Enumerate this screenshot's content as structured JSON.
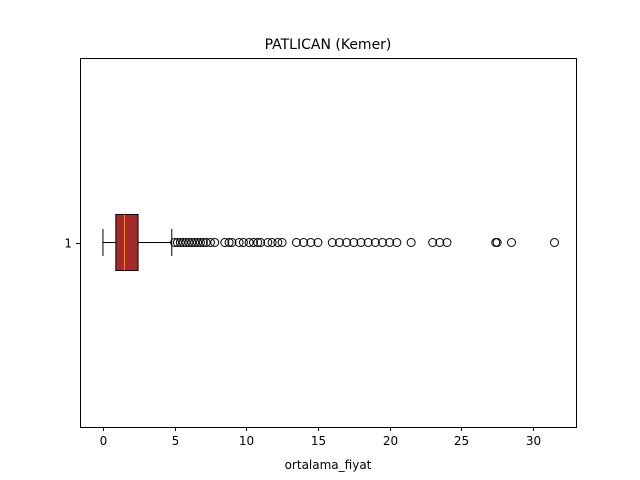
{
  "chart_data": {
    "type": "boxplot",
    "orientation": "horizontal",
    "title": "PATLICAN (Kemer)",
    "xlabel": "ortalama_fiyat",
    "ylabel": "",
    "xlim": [
      -1.6,
      33.0
    ],
    "x_ticks": [
      0,
      5,
      10,
      15,
      20,
      25,
      30
    ],
    "x_tick_labels": [
      "0",
      "5",
      "10",
      "15",
      "20",
      "25",
      "30"
    ],
    "category_labels": [
      "1"
    ],
    "grid": false,
    "boxes": [
      {
        "category": "1",
        "whisker_low": 0.0,
        "q1": 0.9,
        "median": 1.5,
        "q3": 2.45,
        "whisker_high": 4.8,
        "outliers": [
          5.0,
          5.2,
          5.4,
          5.6,
          5.8,
          6.0,
          6.2,
          6.4,
          6.6,
          6.8,
          7.0,
          7.2,
          7.5,
          7.8,
          8.5,
          8.8,
          9.0,
          9.5,
          9.8,
          10.2,
          10.5,
          10.8,
          11.0,
          11.5,
          11.8,
          12.2,
          12.5,
          13.5,
          14.0,
          14.5,
          15.0,
          16.0,
          16.5,
          17.0,
          17.5,
          18.0,
          18.5,
          19.0,
          19.5,
          20.0,
          20.5,
          21.5,
          23.0,
          23.5,
          24.0,
          27.4,
          27.5,
          28.5,
          31.5
        ]
      }
    ],
    "colors": {
      "box_fill": "#a52a2a",
      "median_line": "#ff8c00",
      "outline": "#000000",
      "outlier_edge": "#000000"
    }
  }
}
